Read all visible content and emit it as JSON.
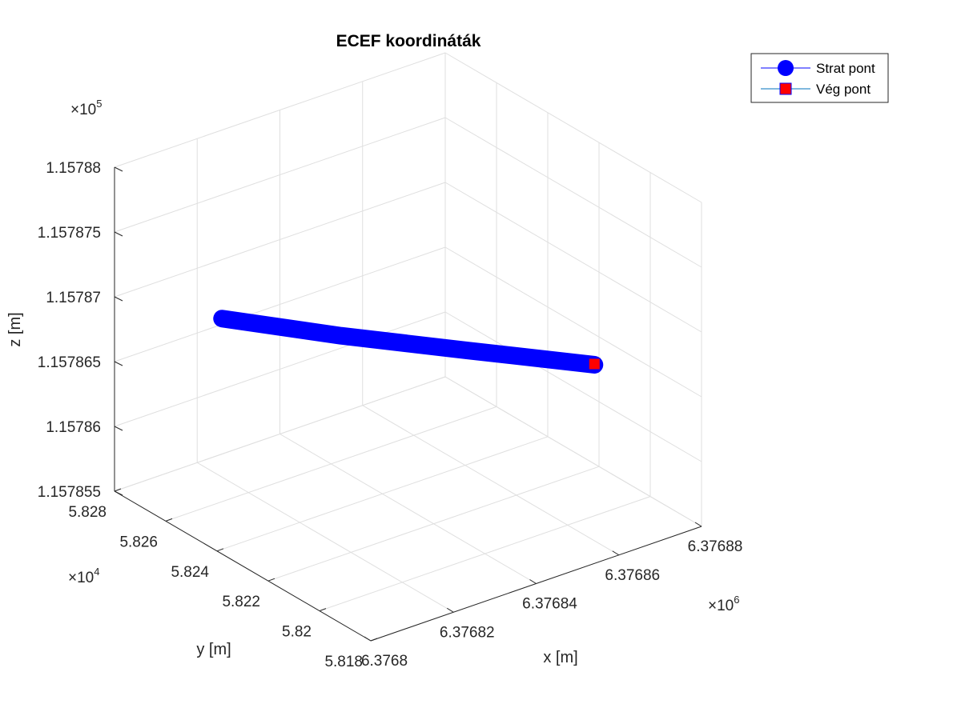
{
  "chart_data": {
    "type": "line3d",
    "title": "ECEF koordináták",
    "xlabel": "x [m]",
    "ylabel": "y [m]",
    "zlabel": "z [m]",
    "x_multiplier": "×10",
    "x_multiplier_exp": "6",
    "y_multiplier": "×10",
    "y_multiplier_exp": "4",
    "z_multiplier": "×10",
    "z_multiplier_exp": "5",
    "x_ticks": [
      "6.3768",
      "6.37682",
      "6.37684",
      "6.37686",
      "6.37688"
    ],
    "y_ticks": [
      "5.818",
      "5.82",
      "5.822",
      "5.824",
      "5.826",
      "5.828"
    ],
    "z_ticks": [
      "1.157855",
      "1.15786",
      "1.157865",
      "1.15787",
      "1.157875",
      "1.15788"
    ],
    "xlim": [
      6376800,
      6376880
    ],
    "ylim": [
      58180,
      58280
    ],
    "zlim": [
      115785.5,
      115788
    ],
    "series": [
      {
        "name": "Strat pont",
        "color": "#0000ff",
        "marker": "circle",
        "x": [
          6376816.4,
          6376830,
          6376845,
          6376860.6
        ],
        "y": [
          58264.5,
          58240,
          58215,
          58190.5
        ],
        "z": [
          115786.83,
          115786.83,
          115786.84,
          115786.84
        ]
      },
      {
        "name": "Vég pont",
        "color": "#ff0000",
        "marker": "square",
        "x": [
          6376860.6
        ],
        "y": [
          58190.5
        ],
        "z": [
          115786.84
        ]
      }
    ],
    "grid": true,
    "legend_position": "top-right"
  }
}
